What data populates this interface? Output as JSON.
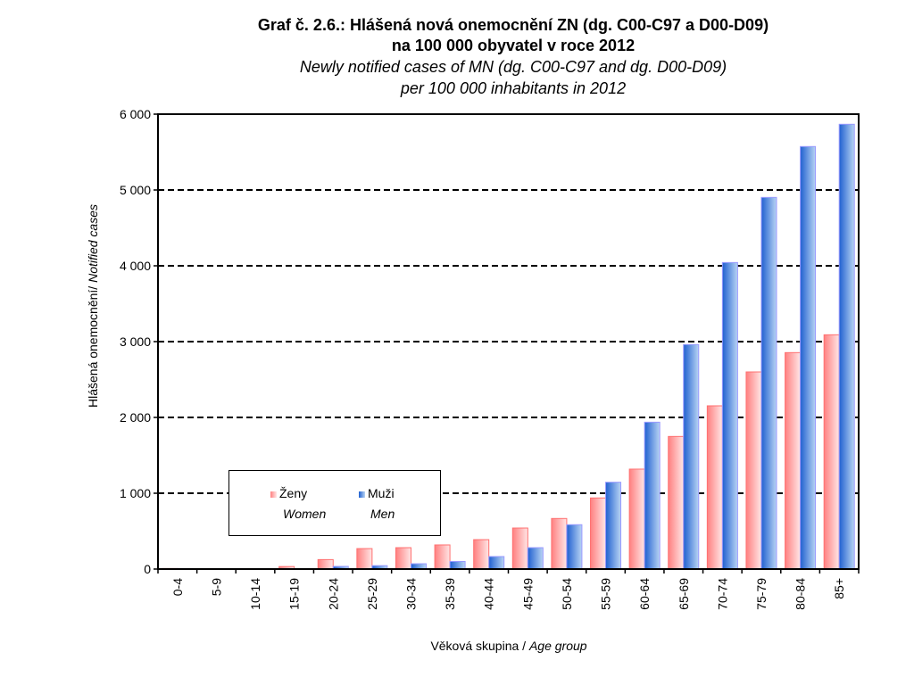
{
  "chart_data": {
    "type": "bar",
    "title": "Graf č. 2.6.: Hlášená nová onemocnění ZN (dg. C00-C97 a D00-D09)",
    "title_line2": "na 100 000 obyvatel v roce 2012",
    "subtitle": "Newly notified cases of MN (dg. C00-C97 and dg. D00-D09)",
    "subtitle_line2": "per 100 000 inhabitants in 2012",
    "xlabel": "Věková skupina / ",
    "xlabel_en": "Age group",
    "ylabel": "Hlášená onemocnění/ ",
    "ylabel_en": "Notified cases",
    "ylim": [
      0,
      6000
    ],
    "yticks": [
      0,
      1000,
      2000,
      3000,
      4000,
      5000,
      6000
    ],
    "ytick_labels": [
      "0",
      "1 000",
      "2 000",
      "3 000",
      "4 000",
      "5 000",
      "6 000"
    ],
    "grid": "horizontal dashed",
    "legend_placement": "bottom-left",
    "categories": [
      "0-4",
      "5-9",
      "10-14",
      "15-19",
      "20-24",
      "25-29",
      "30-34",
      "35-39",
      "40-44",
      "45-49",
      "50-54",
      "55-59",
      "60-64",
      "65-69",
      "70-74",
      "75-79",
      "80-84",
      "85+"
    ],
    "series": [
      {
        "name": "Ženy",
        "name_en": "Women",
        "color": "#ff8080",
        "values": [
          8,
          6,
          6,
          33,
          125,
          270,
          282,
          318,
          388,
          541,
          667,
          938,
          1318,
          1749,
          2153,
          2600,
          2855,
          3090
        ]
      },
      {
        "name": "Muži",
        "name_en": "Men",
        "color": "#3366cc",
        "values": [
          8,
          5,
          6,
          6,
          35,
          45,
          70,
          100,
          165,
          282,
          585,
          1145,
          1937,
          2961,
          4043,
          4902,
          5573,
          5867
        ]
      }
    ]
  }
}
